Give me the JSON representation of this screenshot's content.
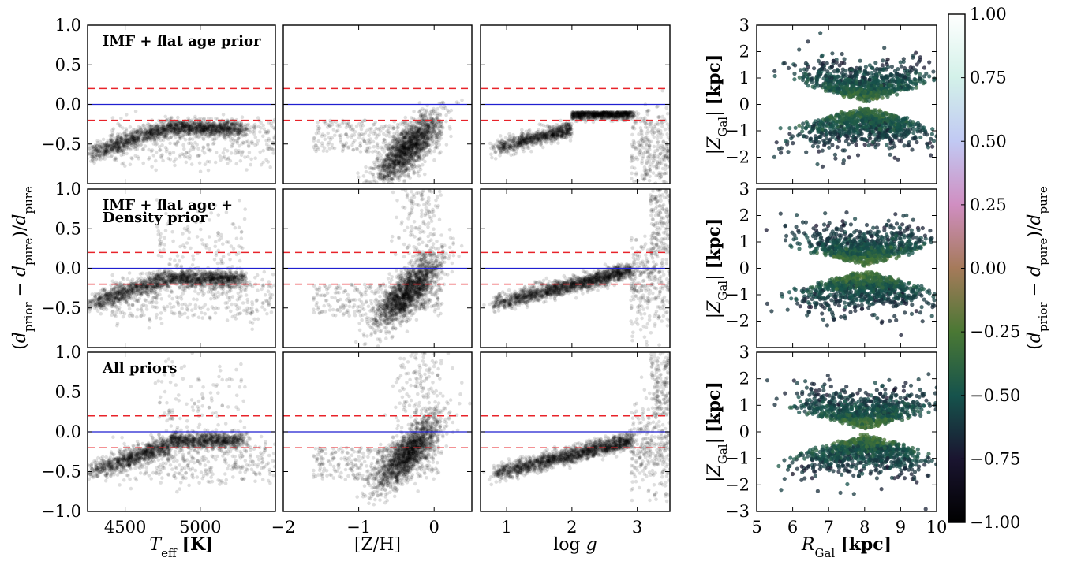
{
  "figure": {
    "ylabel_left": "(d_prior − d_pure)/d_pure",
    "colorbar_label": "(d_prior − d_pure)/d_pure",
    "right_ylabel": "|Z_Gal| [kpc]",
    "right_xlabel": "R_Gal [kpc]"
  },
  "chart_data": [
    {
      "type": "scatter",
      "rows": [
        "IMF + flat age prior",
        "IMF + flat age + Density prior",
        "All priors"
      ],
      "columns": [
        {
          "xlabel": "T_eff [K]",
          "xlim": [
            4250,
            5500
          ],
          "xticks": [
            4500,
            5000
          ]
        },
        {
          "xlabel": "[Z/H]",
          "xlim": [
            -2,
            0.5
          ],
          "xticks": [
            -2,
            -1,
            0
          ]
        },
        {
          "xlabel": "log g",
          "xlim": [
            0.6,
            3.5
          ],
          "xticks": [
            1,
            2,
            3
          ]
        }
      ],
      "ylim": [
        -1.0,
        1.0
      ],
      "yticks": [
        -1.0,
        -0.5,
        0.0,
        0.5,
        1.0
      ],
      "ytick_labels": [
        "−1.0",
        "−0.5",
        "0.0",
        "0.5",
        "1.0"
      ],
      "reference_lines": {
        "solid": 0.0,
        "dashed": [
          0.2,
          -0.2
        ]
      },
      "colors": {
        "points": "#000000",
        "solid": "#1f1fd0",
        "dashed": "#e8232a"
      }
    },
    {
      "type": "scatter",
      "xlabel": "R_Gal [kpc]",
      "ylabel": "|Z_Gal| [kpc]",
      "xlim": [
        5,
        10
      ],
      "ylim": [
        -3,
        3
      ],
      "xticks": [
        5,
        6,
        7,
        8,
        9,
        10
      ],
      "yticks": [
        -3,
        -2,
        -1,
        0,
        1,
        2,
        3
      ],
      "ytick_labels": [
        "−3",
        "−2",
        "−1",
        "0",
        "1",
        "2",
        "3"
      ],
      "colorbar": {
        "range": [
          -1.0,
          1.0
        ],
        "ticks": [
          -1.0,
          -0.75,
          -0.5,
          -0.25,
          0.0,
          0.25,
          0.5,
          0.75,
          1.0
        ],
        "tick_labels": [
          "−1.00",
          "−0.75",
          "−0.50",
          "−0.25",
          "0.00",
          "0.25",
          "0.50",
          "0.75",
          "1.00"
        ],
        "colormap": "cubehelix",
        "colors": [
          "#000000",
          "#1a1530",
          "#16534c",
          "#4a7834",
          "#a57a5a",
          "#d08ec1",
          "#c1c9f3",
          "#d3f1e9",
          "#ffffff"
        ]
      }
    }
  ]
}
